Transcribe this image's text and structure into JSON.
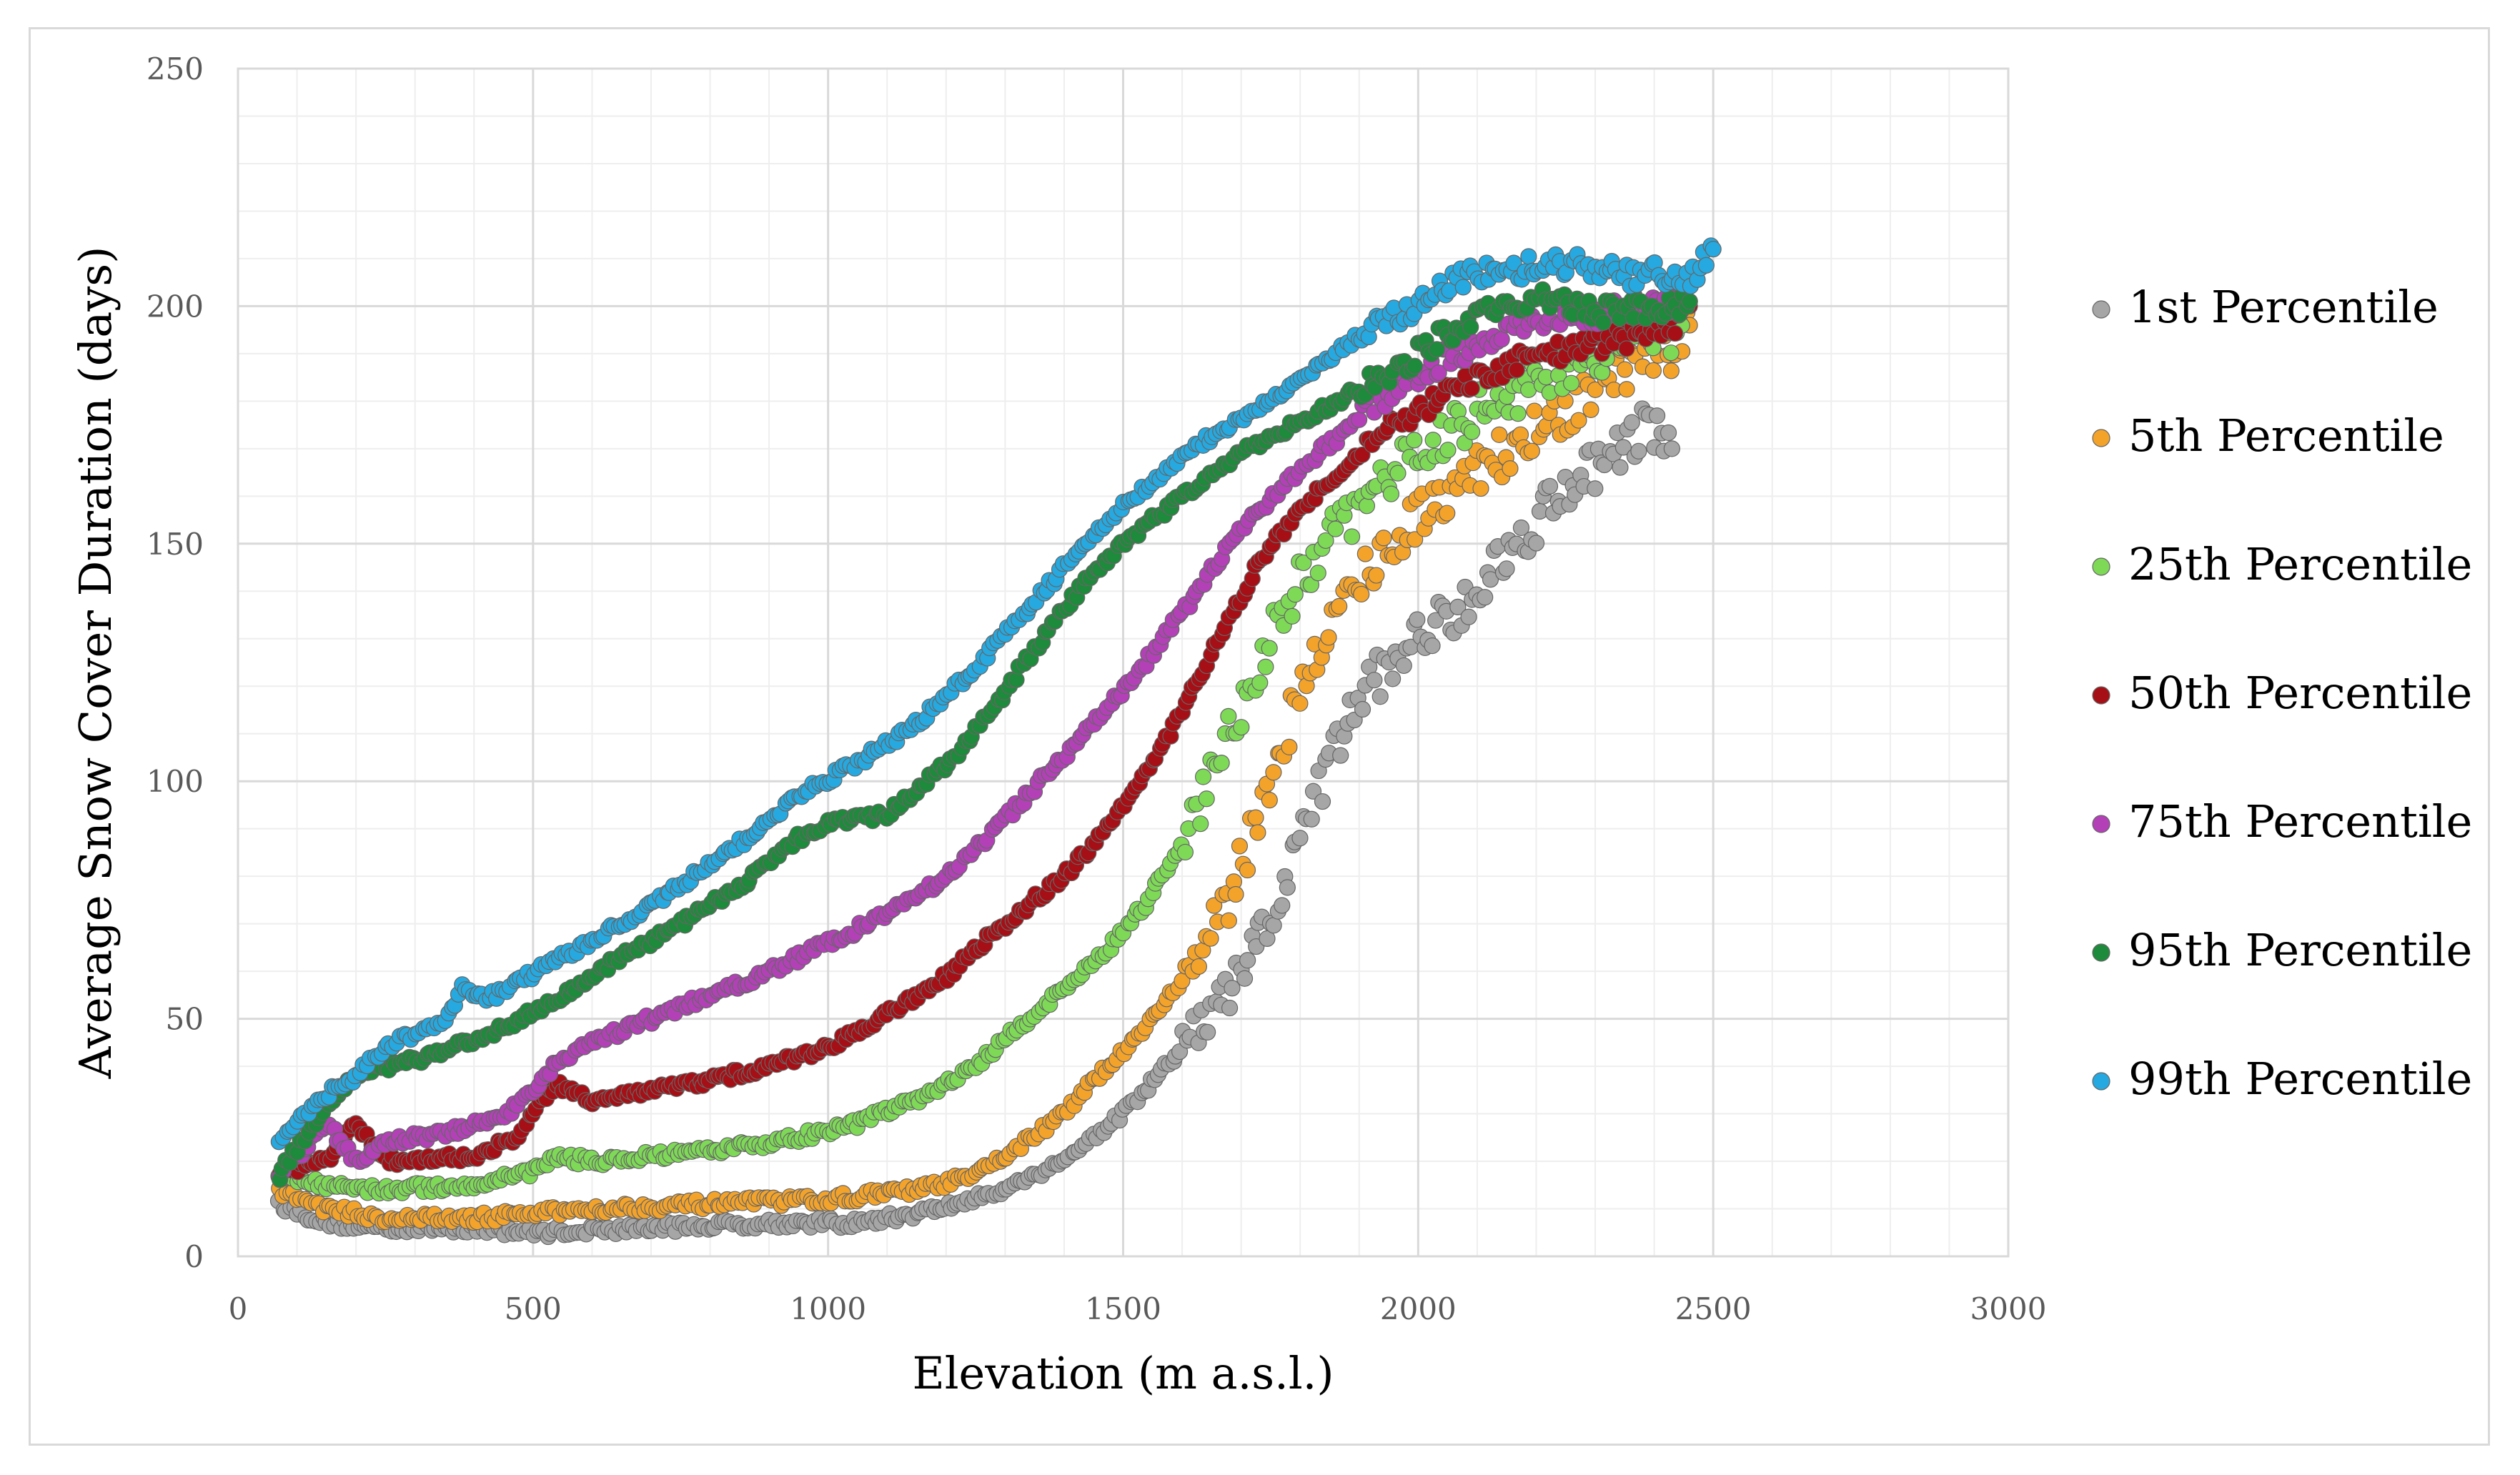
{
  "chart_data": {
    "type": "scatter",
    "title": "",
    "xlabel": "Elevation (m a.s.l.)",
    "ylabel": "Average Snow Cover Duration (days)",
    "xlim": [
      0,
      3000
    ],
    "ylim": [
      0,
      250
    ],
    "xticks": [
      0,
      500,
      1000,
      1500,
      2000,
      2500,
      3000
    ],
    "yticks": [
      0,
      50,
      100,
      150,
      200,
      250
    ],
    "grid": true,
    "legend_position": "right",
    "series": [
      {
        "name": "1st Percentile",
        "color": "#a6a6a6",
        "x": [
          70,
          150,
          250,
          400,
          500,
          700,
          900,
          1050,
          1150,
          1250,
          1350,
          1420,
          1500,
          1560,
          1620,
          1680,
          1730,
          1780,
          1830,
          1880,
          1930,
          1980,
          2030,
          2080,
          2130,
          2180,
          2230,
          2280,
          2330,
          2380,
          2430
        ],
        "y": [
          11,
          7,
          6,
          6,
          5,
          6,
          7,
          7,
          9,
          12,
          17,
          22,
          30,
          38,
          47,
          55,
          66,
          80,
          98,
          113,
          122,
          128,
          133,
          138,
          145,
          152,
          160,
          165,
          168,
          175,
          170
        ]
      },
      {
        "name": "5th Percentile",
        "color": "#f4a32a",
        "x": [
          70,
          150,
          250,
          400,
          600,
          800,
          1000,
          1150,
          1250,
          1320,
          1400,
          1460,
          1520,
          1580,
          1630,
          1680,
          1730,
          1780,
          1830,
          1880,
          1930,
          1980,
          2030,
          2080,
          2130,
          2180,
          2230,
          2280,
          2330,
          2380,
          2430,
          2460
        ],
        "y": [
          14,
          10,
          8,
          8,
          10,
          11,
          12,
          14,
          17,
          23,
          30,
          38,
          46,
          55,
          63,
          75,
          93,
          112,
          127,
          139,
          147,
          153,
          159,
          165,
          168,
          172,
          175,
          180,
          185,
          190,
          190,
          196
        ]
      },
      {
        "name": "25th Percentile",
        "color": "#7ed957",
        "x": [
          70,
          150,
          250,
          400,
          500,
          540,
          600,
          800,
          950,
          1050,
          1150,
          1250,
          1320,
          1400,
          1460,
          1520,
          1580,
          1630,
          1680,
          1730,
          1780,
          1830,
          1880,
          1930,
          1980,
          2030,
          2080,
          2130,
          2180,
          2230,
          2280,
          2330,
          2380,
          2430,
          2460
        ],
        "y": [
          17,
          15,
          14,
          15,
          18,
          21,
          20,
          22,
          25,
          28,
          33,
          40,
          48,
          56,
          63,
          71,
          82,
          95,
          110,
          125,
          138,
          148,
          155,
          162,
          167,
          172,
          176,
          180,
          183,
          186,
          189,
          192,
          195,
          195,
          201
        ]
      },
      {
        "name": "50th Percentile",
        "color": "#a50f15",
        "x": [
          70,
          150,
          200,
          250,
          400,
          470,
          500,
          540,
          600,
          700,
          800,
          900,
          1000,
          1100,
          1200,
          1300,
          1400,
          1460,
          1520,
          1580,
          1630,
          1680,
          1730,
          1780,
          1830,
          1880,
          1930,
          1980,
          2030,
          2080,
          2130,
          2180,
          2230,
          2280,
          2330,
          2380,
          2430,
          2460
        ],
        "y": [
          18,
          20,
          28,
          20,
          21,
          25,
          30,
          36,
          33,
          35,
          37,
          40,
          44,
          51,
          59,
          70,
          80,
          88,
          98,
          110,
          122,
          134,
          146,
          154,
          161,
          167,
          172,
          176,
          180,
          183,
          186,
          189,
          190,
          191,
          193,
          194,
          195,
          200
        ]
      },
      {
        "name": "75th Percentile",
        "color": "#b440b8",
        "x": [
          70,
          150,
          200,
          250,
          350,
          450,
          500,
          540,
          600,
          700,
          800,
          900,
          1000,
          1100,
          1200,
          1300,
          1380,
          1450,
          1520,
          1580,
          1630,
          1680,
          1730,
          1780,
          1830,
          1880,
          1930,
          1980,
          2030,
          2080,
          2130,
          2180,
          2230,
          2280,
          2330,
          2380,
          2430,
          2460
        ],
        "y": [
          17,
          28,
          20,
          24,
          26,
          29,
          35,
          41,
          45,
          50,
          55,
          60,
          66,
          72,
          80,
          92,
          103,
          112,
          122,
          132,
          141,
          150,
          157,
          163,
          169,
          174,
          180,
          184,
          188,
          191,
          194,
          196,
          198,
          198,
          199,
          200,
          201,
          205
        ]
      },
      {
        "name": "95th Percentile",
        "color": "#1e8a3b",
        "x": [
          70,
          150,
          200,
          250,
          350,
          450,
          550,
          650,
          750,
          850,
          950,
          1000,
          1050,
          1100,
          1150,
          1220,
          1300,
          1380,
          1450,
          1520,
          1580,
          1640,
          1700,
          1760,
          1820,
          1880,
          1940,
          2000,
          2060,
          2120,
          2180,
          2240,
          2300,
          2360,
          2420,
          2460
        ],
        "y": [
          17,
          32,
          38,
          40,
          43,
          48,
          55,
          63,
          70,
          78,
          88,
          91,
          92,
          93,
          98,
          106,
          119,
          133,
          144,
          152,
          158,
          164,
          169,
          173,
          177,
          181,
          185,
          190,
          195,
          199,
          201,
          201,
          199,
          199,
          200,
          201
        ]
      },
      {
        "name": "99th Percentile",
        "color": "#25a9e0",
        "x": [
          70,
          120,
          160,
          200,
          250,
          300,
          350,
          380,
          420,
          480,
          550,
          650,
          750,
          850,
          950,
          1050,
          1150,
          1250,
          1330,
          1400,
          1460,
          1520,
          1580,
          1640,
          1700,
          1760,
          1820,
          1880,
          1940,
          2000,
          2060,
          2120,
          2180,
          2240,
          2300,
          2360,
          2420,
          2460,
          2500
        ],
        "y": [
          25,
          30,
          35,
          38,
          44,
          47,
          49,
          57,
          54,
          58,
          63,
          70,
          78,
          87,
          97,
          104,
          112,
          124,
          135,
          145,
          153,
          160,
          166,
          172,
          176,
          181,
          186,
          192,
          197,
          200,
          205,
          207,
          208,
          209,
          208,
          206,
          207,
          206,
          212
        ]
      }
    ]
  }
}
